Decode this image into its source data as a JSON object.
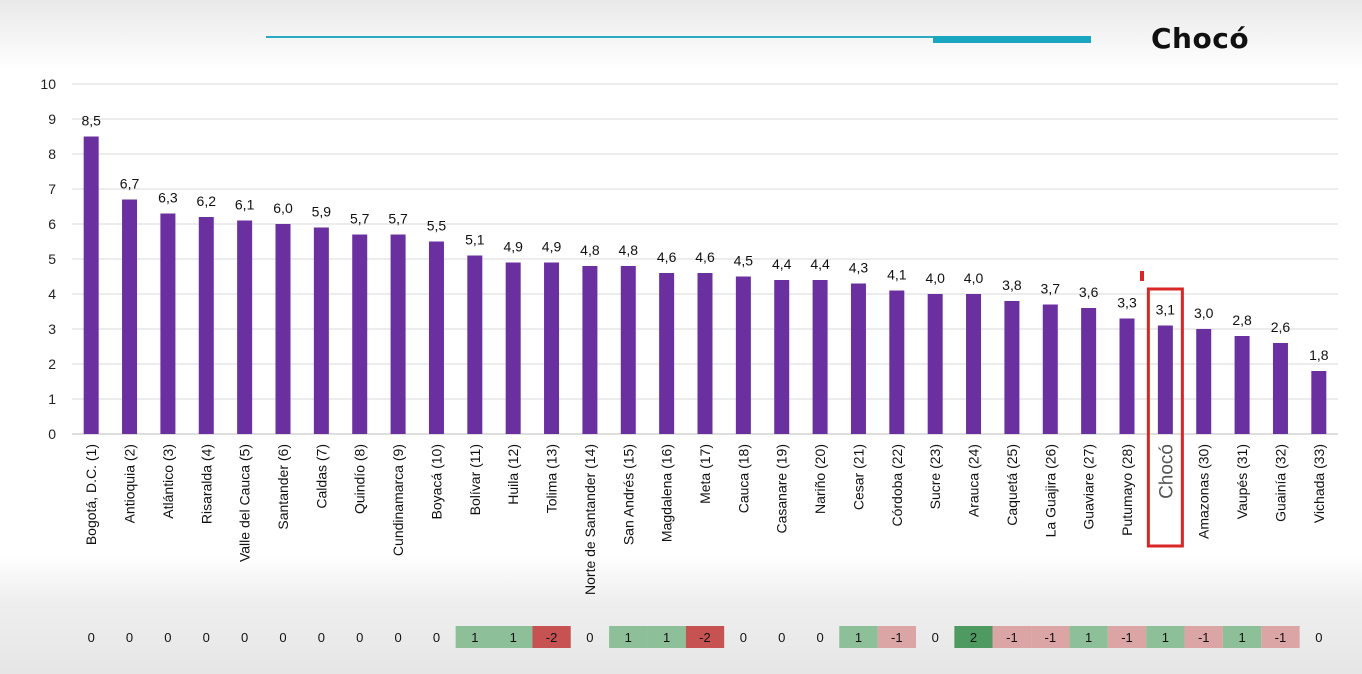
{
  "header": {
    "title": "Chocó"
  },
  "colors": {
    "bar": "#6b30a0",
    "accent_line": "#1aa6c0",
    "highlight_box": "#d92626",
    "change_positive": "#8dbf99",
    "change_positive_strong": "#4f9a60",
    "change_negative": "#dba5a5",
    "change_negative_strong": "#c75252",
    "change_neutral": "#ececec"
  },
  "highlight": {
    "category_index": 28
  },
  "chart_data": {
    "type": "bar",
    "ylim": [
      0,
      10
    ],
    "yticks": [
      0,
      1,
      2,
      3,
      4,
      5,
      6,
      7,
      8,
      9,
      10
    ],
    "grid": true,
    "categories": [
      "Bogotá, D.C. (1)",
      "Antioquia (2)",
      "Atlántico (3)",
      "Risaralda (4)",
      "Valle del Cauca (5)",
      "Santander (6)",
      "Caldas (7)",
      "Quindío (8)",
      "Cundinamarca (9)",
      "Boyacá (10)",
      "Bolívar (11)",
      "Huila (12)",
      "Tolima (13)",
      "Norte de Santander (14)",
      "San Andrés (15)",
      "Magdalena (16)",
      "Meta (17)",
      "Cauca (18)",
      "Casanare (19)",
      "Nariño (20)",
      "Cesar (21)",
      "Córdoba (22)",
      "Sucre (23)",
      "Arauca (24)",
      "Caquetá (25)",
      "La Guajira (26)",
      "Guaviare (27)",
      "Putumayo (28)",
      "Chocó",
      "Amazonas (30)",
      "Vaupés (31)",
      "Guainía (32)",
      "Vichada (33)"
    ],
    "values": [
      8.5,
      6.7,
      6.3,
      6.2,
      6.1,
      6.0,
      5.9,
      5.7,
      5.7,
      5.5,
      5.1,
      4.9,
      4.9,
      4.8,
      4.8,
      4.6,
      4.6,
      4.5,
      4.4,
      4.4,
      4.3,
      4.1,
      4.0,
      4.0,
      3.8,
      3.7,
      3.6,
      3.3,
      3.1,
      3.0,
      2.8,
      2.6,
      1.8
    ],
    "value_labels": [
      "8,5",
      "6,7",
      "6,3",
      "6,2",
      "6,1",
      "6,0",
      "5,9",
      "5,7",
      "5,7",
      "5,5",
      "5,1",
      "4,9",
      "4,9",
      "4,8",
      "4,8",
      "4,6",
      "4,6",
      "4,5",
      "4,4",
      "4,4",
      "4,3",
      "4,1",
      "4,0",
      "4,0",
      "3,8",
      "3,7",
      "3,6",
      "3,3",
      "3,1",
      "3,0",
      "2,8",
      "2,6",
      "1,8"
    ],
    "rank_changes": [
      0,
      0,
      0,
      0,
      0,
      0,
      0,
      0,
      0,
      0,
      1,
      1,
      -2,
      0,
      1,
      1,
      -2,
      0,
      0,
      0,
      1,
      -1,
      0,
      2,
      -1,
      -1,
      1,
      -1,
      1,
      -1,
      1,
      -1,
      0
    ]
  }
}
